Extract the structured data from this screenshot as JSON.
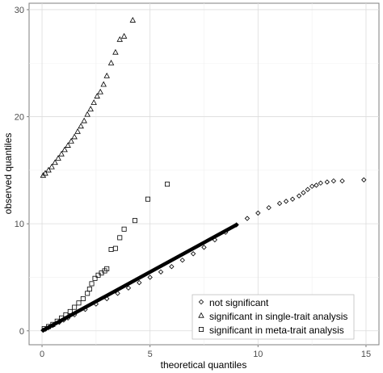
{
  "chart_data": {
    "type": "scatter",
    "xlabel": "theoretical quantiles",
    "ylabel": "observed quantiles",
    "xlim": [
      -0.6,
      15.6
    ],
    "ylim": [
      -1.3,
      30.6
    ],
    "x_ticks": [
      0,
      5,
      10,
      15
    ],
    "y_ticks": [
      0,
      10,
      20,
      30
    ],
    "grid": true,
    "legend_position": "bottom-right",
    "series": [
      {
        "name": "not significant",
        "marker": "diamond",
        "x": [
          0.05,
          0.15,
          0.3,
          0.5,
          0.8,
          1.0,
          1.2,
          1.5,
          2.0,
          2.5,
          3.0,
          3.5,
          4.0,
          4.5,
          5.0,
          5.5,
          6.0,
          6.5,
          7.0,
          7.5,
          8.0,
          8.5,
          9.0,
          9.5,
          10.0,
          10.5,
          11.0,
          11.3,
          11.6,
          11.9,
          12.1,
          12.3,
          12.5,
          12.7,
          12.9,
          13.2,
          13.5,
          13.9,
          14.9
        ],
        "y": [
          0.05,
          0.15,
          0.3,
          0.5,
          0.8,
          1.0,
          1.2,
          1.5,
          2.0,
          2.5,
          3.0,
          3.5,
          4.0,
          4.5,
          5.0,
          5.5,
          6.0,
          6.6,
          7.2,
          7.8,
          8.5,
          9.2,
          9.9,
          10.5,
          11.0,
          11.5,
          11.9,
          12.1,
          12.3,
          12.6,
          12.9,
          13.2,
          13.5,
          13.6,
          13.8,
          13.9,
          14.0,
          14.0,
          14.1
        ]
      },
      {
        "name": "significant in single-trait analysis",
        "marker": "triangle",
        "x": [
          0.05,
          0.15,
          0.3,
          0.45,
          0.6,
          0.75,
          0.9,
          1.05,
          1.2,
          1.35,
          1.5,
          1.65,
          1.8,
          1.95,
          2.1,
          2.25,
          2.4,
          2.55,
          2.7,
          2.85,
          3.0,
          3.2,
          3.4,
          3.6,
          3.8,
          4.2
        ],
        "y": [
          14.5,
          14.7,
          15.0,
          15.3,
          15.7,
          16.1,
          16.5,
          16.9,
          17.3,
          17.7,
          18.1,
          18.6,
          19.1,
          19.6,
          20.2,
          20.7,
          21.3,
          21.9,
          22.3,
          23.0,
          23.8,
          25.0,
          26.0,
          27.2,
          27.5,
          29.0
        ]
      },
      {
        "name": "significant in meta-trait analysis",
        "marker": "square",
        "x": [
          0.1,
          0.3,
          0.5,
          0.7,
          0.9,
          1.1,
          1.3,
          1.5,
          1.7,
          1.9,
          2.1,
          2.2,
          2.3,
          2.45,
          2.6,
          2.75,
          2.9,
          3.0,
          3.2,
          3.4,
          3.6,
          3.8,
          4.3,
          4.9,
          5.8
        ],
        "y": [
          0.2,
          0.4,
          0.6,
          0.9,
          1.2,
          1.5,
          1.8,
          2.2,
          2.6,
          3.0,
          3.5,
          3.9,
          4.4,
          4.9,
          5.2,
          5.4,
          5.6,
          5.8,
          7.6,
          7.7,
          8.7,
          9.5,
          10.3,
          12.3,
          13.7
        ]
      }
    ]
  }
}
